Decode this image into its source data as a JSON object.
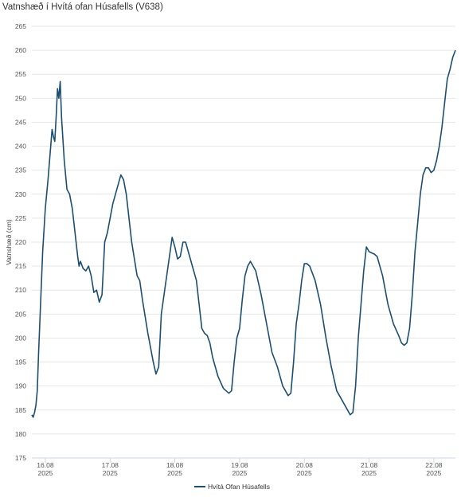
{
  "chart_data": {
    "type": "line",
    "title": "Vatnshæð í Hvítá ofan Húsafells (V638)",
    "ylabel": "Vatnshæð (cm)",
    "xlabel": "",
    "ylim": [
      175,
      265
    ],
    "yticks": [
      175,
      180,
      185,
      190,
      195,
      200,
      205,
      210,
      215,
      220,
      225,
      230,
      235,
      240,
      245,
      250,
      255,
      260,
      265
    ],
    "xlim": [
      "2025-08-15T19:00",
      "2025-08-22T08:00"
    ],
    "xticks": [
      {
        "date": "16.08",
        "year": "2025",
        "at": "2025-08-16T00:00"
      },
      {
        "date": "17.08",
        "year": "2025",
        "at": "2025-08-17T00:00"
      },
      {
        "date": "18.08",
        "year": "2025",
        "at": "2025-08-18T00:00"
      },
      {
        "date": "19.08",
        "year": "2025",
        "at": "2025-08-19T00:00"
      },
      {
        "date": "20.08",
        "year": "2025",
        "at": "2025-08-20T00:00"
      },
      {
        "date": "21.08",
        "year": "2025",
        "at": "2025-08-21T00:00"
      },
      {
        "date": "22.08",
        "year": "2025",
        "at": "2025-08-22T00:00"
      }
    ],
    "grid": true,
    "legend_position": "bottom",
    "series": [
      {
        "name": "Hvítá Ofan Húsafells",
        "color": "#1b4f72",
        "points": [
          [
            "2025-08-15T19:00",
            184.0
          ],
          [
            "2025-08-15T19:30",
            183.5
          ],
          [
            "2025-08-15T20:00",
            184.5
          ],
          [
            "2025-08-15T20:30",
            186.0
          ],
          [
            "2025-08-15T21:00",
            189.0
          ],
          [
            "2025-08-15T21:30",
            197.0
          ],
          [
            "2025-08-15T22:00",
            204.0
          ],
          [
            "2025-08-15T23:00",
            218.0
          ],
          [
            "2025-08-16T00:00",
            227.0
          ],
          [
            "2025-08-16T01:00",
            233.0
          ],
          [
            "2025-08-16T02:00",
            240.0
          ],
          [
            "2025-08-16T02:30",
            243.5
          ],
          [
            "2025-08-16T03:00",
            242.0
          ],
          [
            "2025-08-16T03:30",
            241.0
          ],
          [
            "2025-08-16T04:00",
            246.0
          ],
          [
            "2025-08-16T04:30",
            252.0
          ],
          [
            "2025-08-16T05:00",
            250.0
          ],
          [
            "2025-08-16T05:30",
            253.5
          ],
          [
            "2025-08-16T06:00",
            246.0
          ],
          [
            "2025-08-16T07:00",
            237.0
          ],
          [
            "2025-08-16T08:00",
            231.0
          ],
          [
            "2025-08-16T09:00",
            230.0
          ],
          [
            "2025-08-16T10:00",
            227.0
          ],
          [
            "2025-08-16T11:00",
            222.0
          ],
          [
            "2025-08-16T12:00",
            217.0
          ],
          [
            "2025-08-16T12:30",
            215.0
          ],
          [
            "2025-08-16T13:00",
            216.0
          ],
          [
            "2025-08-16T14:00",
            214.5
          ],
          [
            "2025-08-16T15:00",
            214.0
          ],
          [
            "2025-08-16T16:00",
            215.0
          ],
          [
            "2025-08-16T17:00",
            213.0
          ],
          [
            "2025-08-16T18:00",
            209.5
          ],
          [
            "2025-08-16T19:00",
            210.0
          ],
          [
            "2025-08-16T20:00",
            207.5
          ],
          [
            "2025-08-16T21:00",
            209.0
          ],
          [
            "2025-08-16T22:00",
            220.0
          ],
          [
            "2025-08-16T23:00",
            222.0
          ],
          [
            "2025-08-17T01:00",
            228.0
          ],
          [
            "2025-08-17T03:00",
            232.0
          ],
          [
            "2025-08-17T04:00",
            234.0
          ],
          [
            "2025-08-17T05:00",
            233.0
          ],
          [
            "2025-08-17T06:00",
            230.0
          ],
          [
            "2025-08-17T08:00",
            220.0
          ],
          [
            "2025-08-17T10:00",
            213.0
          ],
          [
            "2025-08-17T11:00",
            212.0
          ],
          [
            "2025-08-17T12:00",
            208.0
          ],
          [
            "2025-08-17T14:00",
            201.0
          ],
          [
            "2025-08-17T16:00",
            195.0
          ],
          [
            "2025-08-17T17:00",
            192.5
          ],
          [
            "2025-08-17T18:00",
            194.0
          ],
          [
            "2025-08-17T19:00",
            205.0
          ],
          [
            "2025-08-17T20:00",
            209.0
          ],
          [
            "2025-08-17T21:00",
            213.0
          ],
          [
            "2025-08-17T22:00",
            217.0
          ],
          [
            "2025-08-17T23:00",
            221.0
          ],
          [
            "2025-08-18T00:00",
            219.0
          ],
          [
            "2025-08-18T01:00",
            216.5
          ],
          [
            "2025-08-18T02:00",
            217.0
          ],
          [
            "2025-08-18T03:00",
            220.0
          ],
          [
            "2025-08-18T04:00",
            220.0
          ],
          [
            "2025-08-18T05:00",
            218.0
          ],
          [
            "2025-08-18T06:00",
            216.0
          ],
          [
            "2025-08-18T08:00",
            212.0
          ],
          [
            "2025-08-18T09:00",
            207.0
          ],
          [
            "2025-08-18T10:00",
            202.0
          ],
          [
            "2025-08-18T11:00",
            201.0
          ],
          [
            "2025-08-18T12:00",
            200.5
          ],
          [
            "2025-08-18T13:00",
            199.0
          ],
          [
            "2025-08-18T14:00",
            196.0
          ],
          [
            "2025-08-18T16:00",
            192.0
          ],
          [
            "2025-08-18T18:00",
            189.5
          ],
          [
            "2025-08-18T20:00",
            188.5
          ],
          [
            "2025-08-18T21:00",
            189.0
          ],
          [
            "2025-08-18T22:00",
            195.0
          ],
          [
            "2025-08-18T23:00",
            200.0
          ],
          [
            "2025-08-19T00:00",
            202.0
          ],
          [
            "2025-08-19T01:00",
            208.0
          ],
          [
            "2025-08-19T02:00",
            213.0
          ],
          [
            "2025-08-19T03:00",
            215.0
          ],
          [
            "2025-08-19T04:00",
            216.0
          ],
          [
            "2025-08-19T05:00",
            215.0
          ],
          [
            "2025-08-19T06:00",
            214.0
          ],
          [
            "2025-08-19T08:00",
            209.0
          ],
          [
            "2025-08-19T10:00",
            203.0
          ],
          [
            "2025-08-19T12:00",
            197.0
          ],
          [
            "2025-08-19T14:00",
            194.0
          ],
          [
            "2025-08-19T16:00",
            190.0
          ],
          [
            "2025-08-19T18:00",
            188.0
          ],
          [
            "2025-08-19T19:00",
            188.5
          ],
          [
            "2025-08-19T20:00",
            195.0
          ],
          [
            "2025-08-19T21:00",
            203.0
          ],
          [
            "2025-08-19T22:00",
            207.0
          ],
          [
            "2025-08-19T23:00",
            212.0
          ],
          [
            "2025-08-20T00:00",
            215.5
          ],
          [
            "2025-08-20T01:00",
            215.5
          ],
          [
            "2025-08-20T02:00",
            215.0
          ],
          [
            "2025-08-20T04:00",
            212.0
          ],
          [
            "2025-08-20T06:00",
            207.0
          ],
          [
            "2025-08-20T08:00",
            200.0
          ],
          [
            "2025-08-20T10:00",
            194.0
          ],
          [
            "2025-08-20T12:00",
            189.0
          ],
          [
            "2025-08-20T14:00",
            187.0
          ],
          [
            "2025-08-20T16:00",
            185.0
          ],
          [
            "2025-08-20T17:00",
            184.0
          ],
          [
            "2025-08-20T18:00",
            184.5
          ],
          [
            "2025-08-20T19:00",
            190.0
          ],
          [
            "2025-08-20T20:00",
            200.0
          ],
          [
            "2025-08-20T21:00",
            207.0
          ],
          [
            "2025-08-20T22:00",
            214.0
          ],
          [
            "2025-08-20T23:00",
            219.0
          ],
          [
            "2025-08-21T00:00",
            218.0
          ],
          [
            "2025-08-21T02:00",
            217.5
          ],
          [
            "2025-08-21T03:00",
            217.0
          ],
          [
            "2025-08-21T05:00",
            213.0
          ],
          [
            "2025-08-21T07:00",
            207.0
          ],
          [
            "2025-08-21T09:00",
            203.0
          ],
          [
            "2025-08-21T11:00",
            200.5
          ],
          [
            "2025-08-21T12:00",
            199.0
          ],
          [
            "2025-08-21T13:00",
            198.5
          ],
          [
            "2025-08-21T14:00",
            199.0
          ],
          [
            "2025-08-21T15:00",
            202.0
          ],
          [
            "2025-08-21T16:00",
            209.0
          ],
          [
            "2025-08-21T17:00",
            218.0
          ],
          [
            "2025-08-21T18:00",
            224.0
          ],
          [
            "2025-08-21T19:00",
            230.0
          ],
          [
            "2025-08-21T20:00",
            234.0
          ],
          [
            "2025-08-21T21:00",
            235.5
          ],
          [
            "2025-08-21T22:00",
            235.5
          ],
          [
            "2025-08-21T23:00",
            234.5
          ],
          [
            "2025-08-22T00:00",
            235.0
          ],
          [
            "2025-08-22T01:00",
            237.0
          ],
          [
            "2025-08-22T02:00",
            240.0
          ],
          [
            "2025-08-22T03:00",
            244.0
          ],
          [
            "2025-08-22T04:00",
            249.0
          ],
          [
            "2025-08-22T05:00",
            254.0
          ],
          [
            "2025-08-22T06:00",
            256.0
          ],
          [
            "2025-08-22T07:00",
            258.5
          ],
          [
            "2025-08-22T08:00",
            260.0
          ]
        ]
      }
    ]
  }
}
